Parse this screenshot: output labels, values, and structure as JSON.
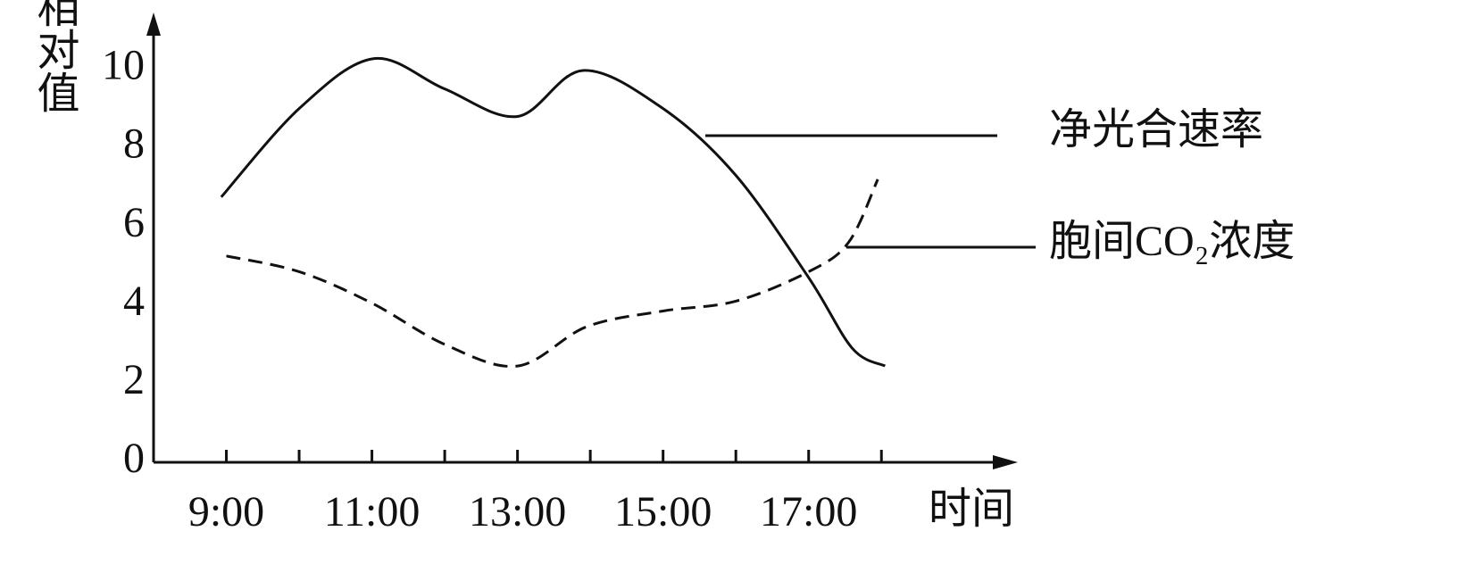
{
  "chart_data": {
    "type": "line",
    "y_label": "相对值",
    "x_label": "时间",
    "xlim": [
      8,
      19.8
    ],
    "ylim": [
      0,
      10.9
    ],
    "xticks": [
      {
        "value": 9,
        "label": "9:00"
      },
      {
        "value": 10,
        "label": null
      },
      {
        "value": 11,
        "label": "11:00"
      },
      {
        "value": 12,
        "label": null
      },
      {
        "value": 13,
        "label": "13:00"
      },
      {
        "value": 14,
        "label": null
      },
      {
        "value": 15,
        "label": "15:00"
      },
      {
        "value": 16,
        "label": null
      },
      {
        "value": 17,
        "label": "17:00"
      },
      {
        "value": 18,
        "label": null
      }
    ],
    "yticks": [
      0,
      2,
      4,
      6,
      8,
      10
    ],
    "series": [
      {
        "name": "净光合速率",
        "color": "#111111",
        "dashed": false,
        "x": [
          8.93,
          10.0,
          11.02,
          12.0,
          13.0,
          13.9,
          15.0,
          16.0,
          17.0,
          17.6,
          18.05
        ],
        "values": [
          6.75,
          9.0,
          10.27,
          9.5,
          8.8,
          9.97,
          9.0,
          7.3,
          4.7,
          2.9,
          2.45
        ]
      },
      {
        "name": "胞间CO₂浓度",
        "color": "#111111",
        "dashed": true,
        "x": [
          9.0,
          10.0,
          11.0,
          12.0,
          13.0,
          13.95,
          15.0,
          16.0,
          17.0,
          17.55,
          17.95
        ],
        "values": [
          5.25,
          4.85,
          4.05,
          3.0,
          2.45,
          3.45,
          3.85,
          4.1,
          4.85,
          5.6,
          7.2
        ]
      }
    ]
  }
}
